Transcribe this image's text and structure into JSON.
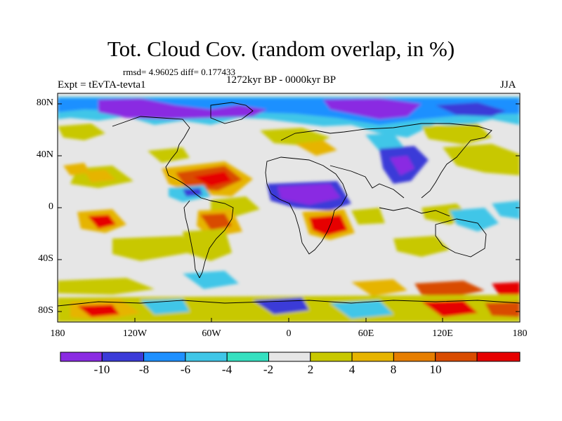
{
  "header": {
    "title": "Tot. Cloud Cov. (random overlap, in %)",
    "stats": "rmsd= 4.96025 diff= 0.177433",
    "period": "1272kyr BP - 0000kyr BP",
    "experiment": "Expt = tEvTA-tevta1",
    "season": "JJA"
  },
  "axes": {
    "y_ticks": [
      "80N",
      "40N",
      "0",
      "40S",
      "80S"
    ],
    "x_ticks": [
      "180",
      "120W",
      "60W",
      "0",
      "60E",
      "120E",
      "180"
    ]
  },
  "colorbar": {
    "labels": [
      "-10",
      "-8",
      "-6",
      "-4",
      "-2",
      "2",
      "4",
      "8",
      "10"
    ],
    "colors": [
      "#8a2be2",
      "#3b3bd8",
      "#1e90ff",
      "#3fc6e8",
      "#35e0c0",
      "#e6e6e6",
      "#c8c800",
      "#e6b400",
      "#e67e00",
      "#d94c00",
      "#e60000"
    ]
  },
  "colors": {
    "ocean_neutral": "#e6e6e6",
    "coastline": "#000000"
  }
}
